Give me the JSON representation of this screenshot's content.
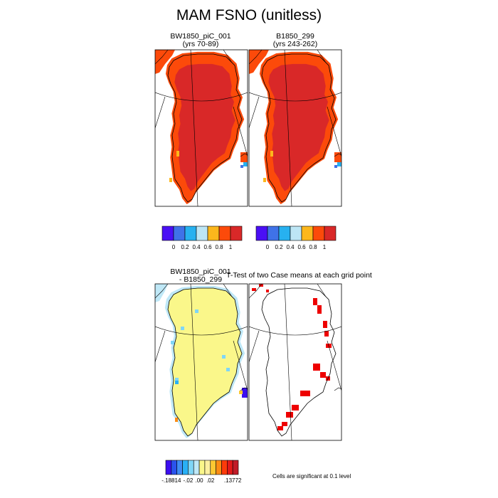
{
  "chart_data": {
    "type": "heatmap",
    "title": "MAM FSNO (unitless)",
    "panels": [
      {
        "title": "BW1850_piC_001",
        "subtitle": "(yrs 70-89)"
      },
      {
        "title": "B1850_299",
        "subtitle": "(yrs 243-262)"
      },
      {
        "title": "BW1850_piC_001",
        "subtitle": "- B1850_299"
      },
      {
        "title": "T-Test of two Case means at each grid point",
        "subtitle": ""
      }
    ],
    "colorbars": [
      {
        "colors": [
          "#4a0ff5",
          "#3f72e8",
          "#27b1f0",
          "#bde6f5",
          "#fcb71c",
          "#fc4a0a",
          "#d92828"
        ],
        "tick_labels": [
          "0",
          "0.2",
          "0.4",
          "0.6",
          "0.8",
          "1"
        ]
      },
      {
        "colors": [
          "#4a0ff5",
          "#3f72e8",
          "#27b1f0",
          "#bde6f5",
          "#fcb71c",
          "#fc4a0a",
          "#d92828"
        ],
        "tick_labels": [
          "0",
          "0.2",
          "0.4",
          "0.6",
          "0.8",
          "1"
        ]
      },
      {
        "colors": [
          "#3c0ff0",
          "#2a53ed",
          "#3f8cf5",
          "#29b0f5",
          "#7fd6f7",
          "#bfe8f7",
          "#faf78a",
          "#fdf0a0",
          "#fcc832",
          "#fc8c14",
          "#fc3b0a",
          "#e31a1a",
          "#c01c28"
        ],
        "tick_labels": [
          "-.18814",
          "-.02",
          ".00",
          ".02",
          ".13772"
        ]
      }
    ],
    "note": "Cells are significant at 0.1 level"
  }
}
